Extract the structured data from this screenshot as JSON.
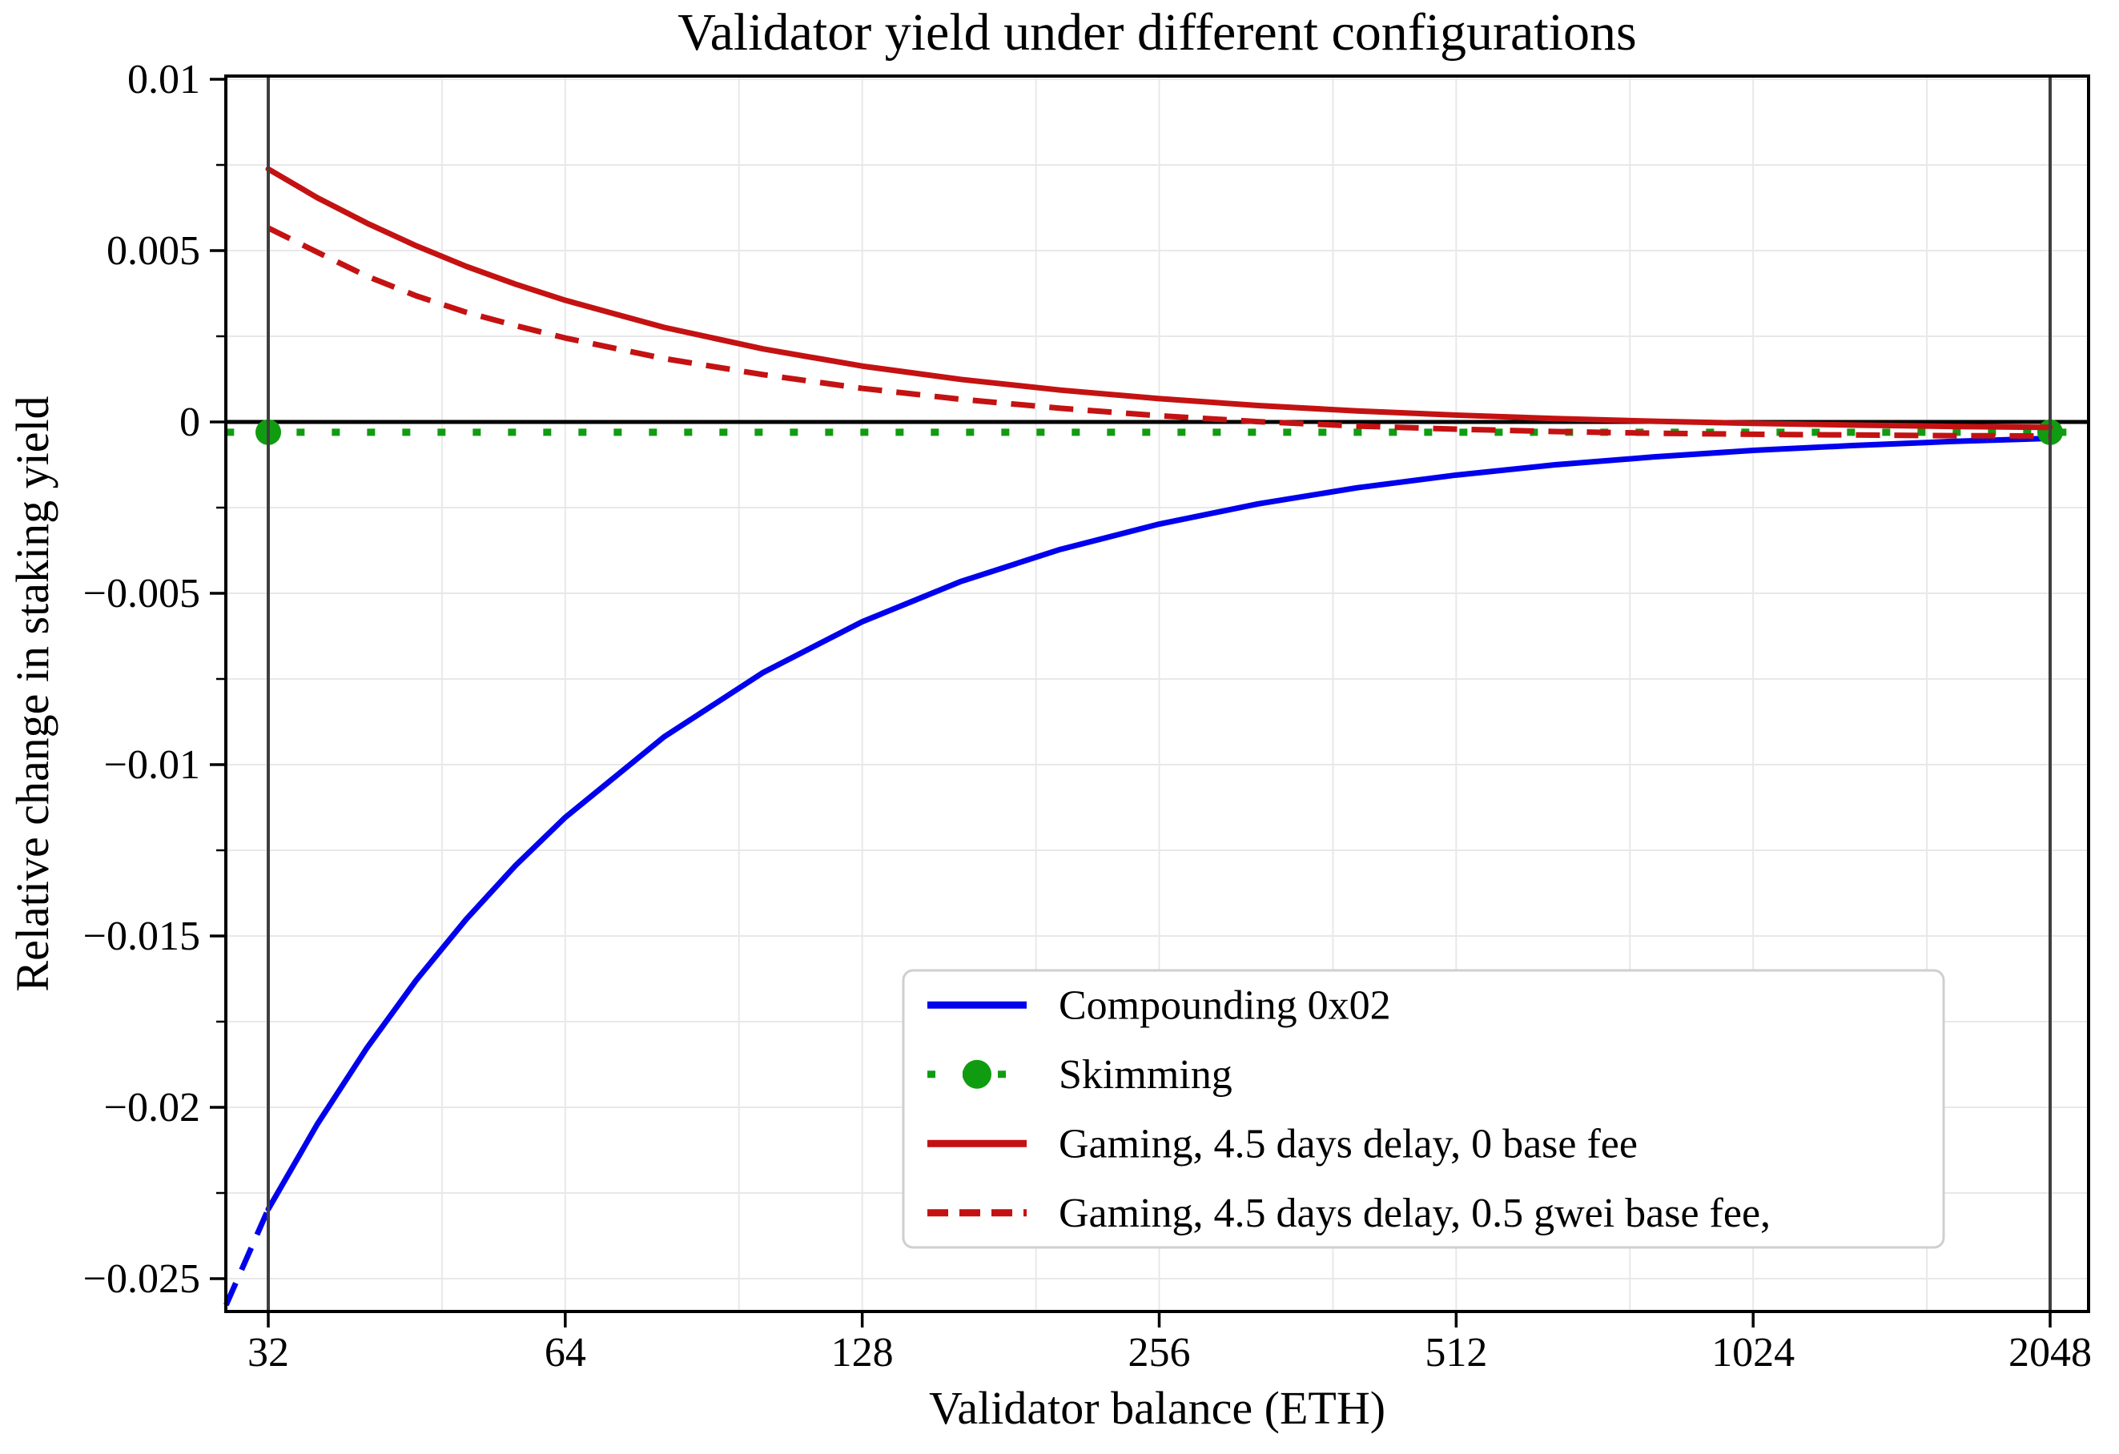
{
  "chart_data": {
    "type": "line",
    "title": "Validator yield under different configurations",
    "xlabel": "Validator balance (ETH)",
    "ylabel": "Relative change in staking yield",
    "x_scale": "log2",
    "xlim": [
      29,
      2239
    ],
    "ylim": [
      -0.02596,
      0.0101
    ],
    "grid": true,
    "x_ticks": {
      "values": [
        32,
        64,
        128,
        256,
        512,
        1024,
        2048
      ],
      "labels": [
        "32",
        "64",
        "128",
        "256",
        "512",
        "1024",
        "2048"
      ]
    },
    "x_minor_gridlines": [
      48,
      96,
      192,
      384,
      768,
      1536
    ],
    "y_ticks": {
      "values": [
        0.01,
        0.005,
        0,
        -0.005,
        -0.01,
        -0.015,
        -0.02,
        -0.025
      ],
      "labels": [
        "0.01",
        "0.005",
        "0",
        "−0.005",
        "−0.01",
        "−0.015",
        "−0.02",
        "−0.025"
      ]
    },
    "y_minor_ticks": [
      0.0075,
      0.0025,
      -0.0025,
      -0.0075,
      -0.0125,
      -0.0175,
      -0.0225
    ],
    "reference_lines": {
      "horizontal_y": 0,
      "vertical_x": [
        32,
        2048
      ]
    },
    "colors": {
      "compounding": "#0000ee",
      "skimming": "#109c10",
      "gaming": "#c41212",
      "grid": "#e8e8e8",
      "vline": "#3f3f3f",
      "axis": "#000000",
      "legend_border": "#cfcfcf"
    },
    "x_samples": [
      32,
      35.9,
      40.3,
      45.2,
      50.8,
      57,
      64,
      80.6,
      101.6,
      128,
      161.3,
      203.2,
      256,
      322.5,
      406.4,
      512,
      645,
      812.7,
      1024,
      1290,
      1625,
      2048
    ],
    "series": [
      {
        "name": "Compounding 0x02",
        "style": "solid",
        "color_key": "compounding",
        "y": [
          -0.02297,
          -0.02048,
          -0.01826,
          -0.01629,
          -0.01451,
          -0.01294,
          -0.01154,
          -0.00919,
          -0.00731,
          -0.00583,
          -0.00465,
          -0.00372,
          -0.00298,
          -0.00239,
          -0.00192,
          -0.00155,
          -0.00125,
          -0.00102,
          -0.00083,
          -0.00069,
          -0.00057,
          -0.00048
        ],
        "extrapolation_dashed": {
          "x": [
            29,
            32
          ],
          "y": [
            -0.02577,
            -0.02297
          ]
        }
      },
      {
        "name": "Skimming",
        "style": "dotted",
        "color_key": "skimming",
        "constant_y": -0.0003,
        "x_range": [
          29,
          2239
        ],
        "markers_x": [
          32,
          2048
        ]
      },
      {
        "name": "Gaming, 4.5 days delay, 0 base fee",
        "style": "solid",
        "color_key": "gaming",
        "y": [
          0.00738,
          0.00654,
          0.0058,
          0.00514,
          0.00454,
          0.00402,
          0.00355,
          0.00276,
          0.00213,
          0.00163,
          0.00124,
          0.00093,
          0.00068,
          0.00048,
          0.00032,
          0.0002,
          0.0001,
          2e-05,
          -4e-05,
          -9e-05,
          -0.00013,
          -0.00016
        ]
      },
      {
        "name": "Gaming, 4.5 days delay, 0.5 gwei base fee,",
        "style": "dashed",
        "color_key": "gaming",
        "y": [
          0.00566,
          0.00495,
          0.00425,
          0.00368,
          0.0032,
          0.00281,
          0.00245,
          0.00185,
          0.00138,
          0.00098,
          0.00066,
          0.0004,
          0.00018,
          1e-05,
          -0.00012,
          -0.00021,
          -0.00028,
          -0.00033,
          -0.00036,
          -0.00038,
          -0.0004,
          -0.00041
        ]
      }
    ],
    "legend": {
      "position": "lower-center-right",
      "entries": [
        "Compounding 0x02",
        "Skimming",
        "Gaming, 4.5 days delay, 0 base fee",
        "Gaming, 4.5 days delay, 0.5 gwei base fee,"
      ]
    }
  }
}
